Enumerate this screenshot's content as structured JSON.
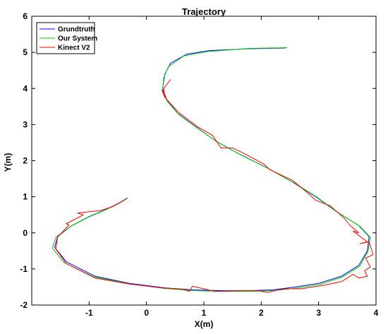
{
  "chart_data": {
    "type": "line",
    "title": "Trajectory",
    "xlabel": "X(m)",
    "ylabel": "Y(m)",
    "xlim": [
      -2.0,
      4.0
    ],
    "ylim": [
      -2.0,
      6.0
    ],
    "xticks": [
      "-1",
      "0",
      "1",
      "2",
      "3",
      "4"
    ],
    "xtick_values": [
      -1,
      0,
      1,
      2,
      3,
      4
    ],
    "yticks": [
      "-2",
      "-1",
      "0",
      "1",
      "2",
      "3",
      "4",
      "5",
      "6"
    ],
    "ytick_values": [
      -2,
      -1,
      0,
      1,
      2,
      3,
      4,
      5,
      6
    ],
    "grid": false,
    "legend_position": "top-left",
    "series": [
      {
        "name": "Grundtruth",
        "color": "#0000ff",
        "x": [
          2.42,
          1.8,
          1.1,
          0.7,
          0.42,
          0.32,
          0.28,
          0.35,
          0.55,
          0.85,
          1.2,
          1.6,
          2.1,
          2.55,
          2.95,
          3.3,
          3.7,
          3.88,
          3.85,
          3.7,
          3.4,
          3.0,
          2.6,
          2.2,
          1.8,
          1.3,
          0.8,
          0.3,
          -0.3,
          -0.9,
          -1.4,
          -1.6,
          -1.55,
          -1.3,
          -1.0,
          -0.7,
          -0.45,
          -0.33
        ],
        "y": [
          5.12,
          5.1,
          5.05,
          4.95,
          4.7,
          4.4,
          4.0,
          3.7,
          3.3,
          2.95,
          2.55,
          2.2,
          1.8,
          1.4,
          1.0,
          0.6,
          0.2,
          -0.1,
          -0.5,
          -0.9,
          -1.2,
          -1.4,
          -1.5,
          -1.58,
          -1.6,
          -1.6,
          -1.58,
          -1.52,
          -1.4,
          -1.2,
          -0.8,
          -0.4,
          -0.1,
          0.2,
          0.45,
          0.65,
          0.85,
          0.97
        ]
      },
      {
        "name": "Our System",
        "color": "#00cc00",
        "x": [
          2.45,
          1.8,
          1.05,
          0.65,
          0.38,
          0.3,
          0.28,
          0.36,
          0.56,
          0.86,
          1.22,
          1.62,
          2.12,
          2.58,
          2.98,
          3.32,
          3.72,
          3.9,
          3.86,
          3.72,
          3.42,
          3.02,
          2.62,
          2.22,
          1.82,
          1.32,
          0.82,
          0.32,
          -0.28,
          -0.92,
          -1.44,
          -1.64,
          -1.58,
          -1.32,
          -1.02,
          -0.72,
          -0.46,
          -0.34
        ],
        "y": [
          5.13,
          5.11,
          5.02,
          4.9,
          4.6,
          4.3,
          3.9,
          3.65,
          3.28,
          2.93,
          2.53,
          2.18,
          1.78,
          1.38,
          0.98,
          0.58,
          0.18,
          -0.12,
          -0.52,
          -0.92,
          -1.22,
          -1.43,
          -1.53,
          -1.6,
          -1.62,
          -1.62,
          -1.6,
          -1.54,
          -1.42,
          -1.22,
          -0.82,
          -0.42,
          -0.12,
          0.18,
          0.43,
          0.63,
          0.83,
          0.95
        ]
      },
      {
        "name": "Kinect V2",
        "color": "#ff0000",
        "x": [
          0.42,
          0.3,
          0.32,
          0.27,
          0.35,
          0.55,
          0.88,
          1.15,
          1.3,
          1.5,
          1.7,
          2.05,
          2.15,
          2.55,
          2.85,
          2.95,
          3.2,
          3.45,
          3.55,
          3.7,
          3.6,
          3.85,
          3.72,
          3.88,
          3.95,
          3.82,
          3.9,
          3.8,
          3.85,
          3.7,
          3.6,
          3.4,
          3.1,
          2.9,
          2.7,
          2.4,
          2.1,
          1.95,
          1.7,
          1.2,
          0.8,
          0.75,
          0.6,
          0.3,
          -0.3,
          -0.9,
          -1.4,
          -1.58,
          -1.55,
          -1.35,
          -1.4,
          -1.1,
          -1.2,
          -0.8,
          -0.6,
          -0.45,
          -0.35
        ],
        "y": [
          4.25,
          4.0,
          3.75,
          3.95,
          3.7,
          3.35,
          2.95,
          2.7,
          2.35,
          2.35,
          2.2,
          1.9,
          1.75,
          1.45,
          1.05,
          0.9,
          0.75,
          0.4,
          0.2,
          0.0,
          0.05,
          -0.25,
          -0.3,
          -0.25,
          -0.6,
          -0.7,
          -0.95,
          -1.05,
          -1.2,
          -1.25,
          -1.15,
          -1.35,
          -1.45,
          -1.5,
          -1.55,
          -1.55,
          -1.65,
          -1.6,
          -1.6,
          -1.62,
          -1.48,
          -1.62,
          -1.55,
          -1.53,
          -1.42,
          -1.25,
          -0.85,
          -0.45,
          -0.12,
          0.22,
          0.25,
          0.5,
          0.55,
          0.62,
          0.72,
          0.85,
          0.95
        ]
      }
    ]
  }
}
